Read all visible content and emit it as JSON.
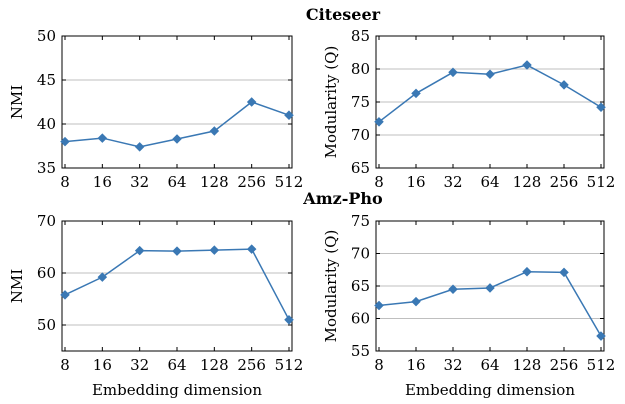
{
  "titles": [
    "Citeseer",
    "Amz-Pho"
  ],
  "colors": {
    "series": "#3a78b4"
  },
  "chart_data": [
    {
      "type": "line",
      "group": "Citeseer",
      "categories": [
        "8",
        "16",
        "32",
        "64",
        "128",
        "256",
        "512"
      ],
      "series": [
        {
          "values": [
            38.0,
            38.4,
            37.4,
            38.3,
            39.2,
            42.5,
            41.0
          ]
        }
      ],
      "xlabel": "",
      "ylabel": "NMI",
      "ylim": [
        35,
        50
      ],
      "yticks": [
        "35",
        "40",
        "45",
        "50"
      ],
      "grid": true,
      "marker": "diamond"
    },
    {
      "type": "line",
      "group": "Citeseer",
      "categories": [
        "8",
        "16",
        "32",
        "64",
        "128",
        "256",
        "512"
      ],
      "series": [
        {
          "values": [
            72.0,
            76.3,
            79.5,
            79.2,
            80.6,
            77.6,
            74.2
          ]
        }
      ],
      "xlabel": "",
      "ylabel": "Modularity (Q)",
      "ylim": [
        65,
        85
      ],
      "yticks": [
        "65",
        "70",
        "75",
        "80",
        "85"
      ],
      "grid": true,
      "marker": "diamond"
    },
    {
      "type": "line",
      "group": "Amz-Pho",
      "categories": [
        "8",
        "16",
        "32",
        "64",
        "128",
        "256",
        "512"
      ],
      "series": [
        {
          "values": [
            55.8,
            59.2,
            64.3,
            64.2,
            64.4,
            64.6,
            51.0
          ]
        }
      ],
      "xlabel": "Embedding dimension",
      "ylabel": "NMI",
      "ylim": [
        45,
        70
      ],
      "yticks": [
        "50",
        "60",
        "70"
      ],
      "grid": true,
      "marker": "diamond"
    },
    {
      "type": "line",
      "group": "Amz-Pho",
      "categories": [
        "8",
        "16",
        "32",
        "64",
        "128",
        "256",
        "512"
      ],
      "series": [
        {
          "values": [
            62.0,
            62.6,
            64.5,
            64.7,
            67.2,
            67.1,
            57.3
          ]
        }
      ],
      "xlabel": "Embedding dimension",
      "ylabel": "Modularity (Q)",
      "ylim": [
        55,
        75
      ],
      "yticks": [
        "55",
        "60",
        "65",
        "70",
        "75"
      ],
      "grid": true,
      "marker": "diamond"
    }
  ]
}
